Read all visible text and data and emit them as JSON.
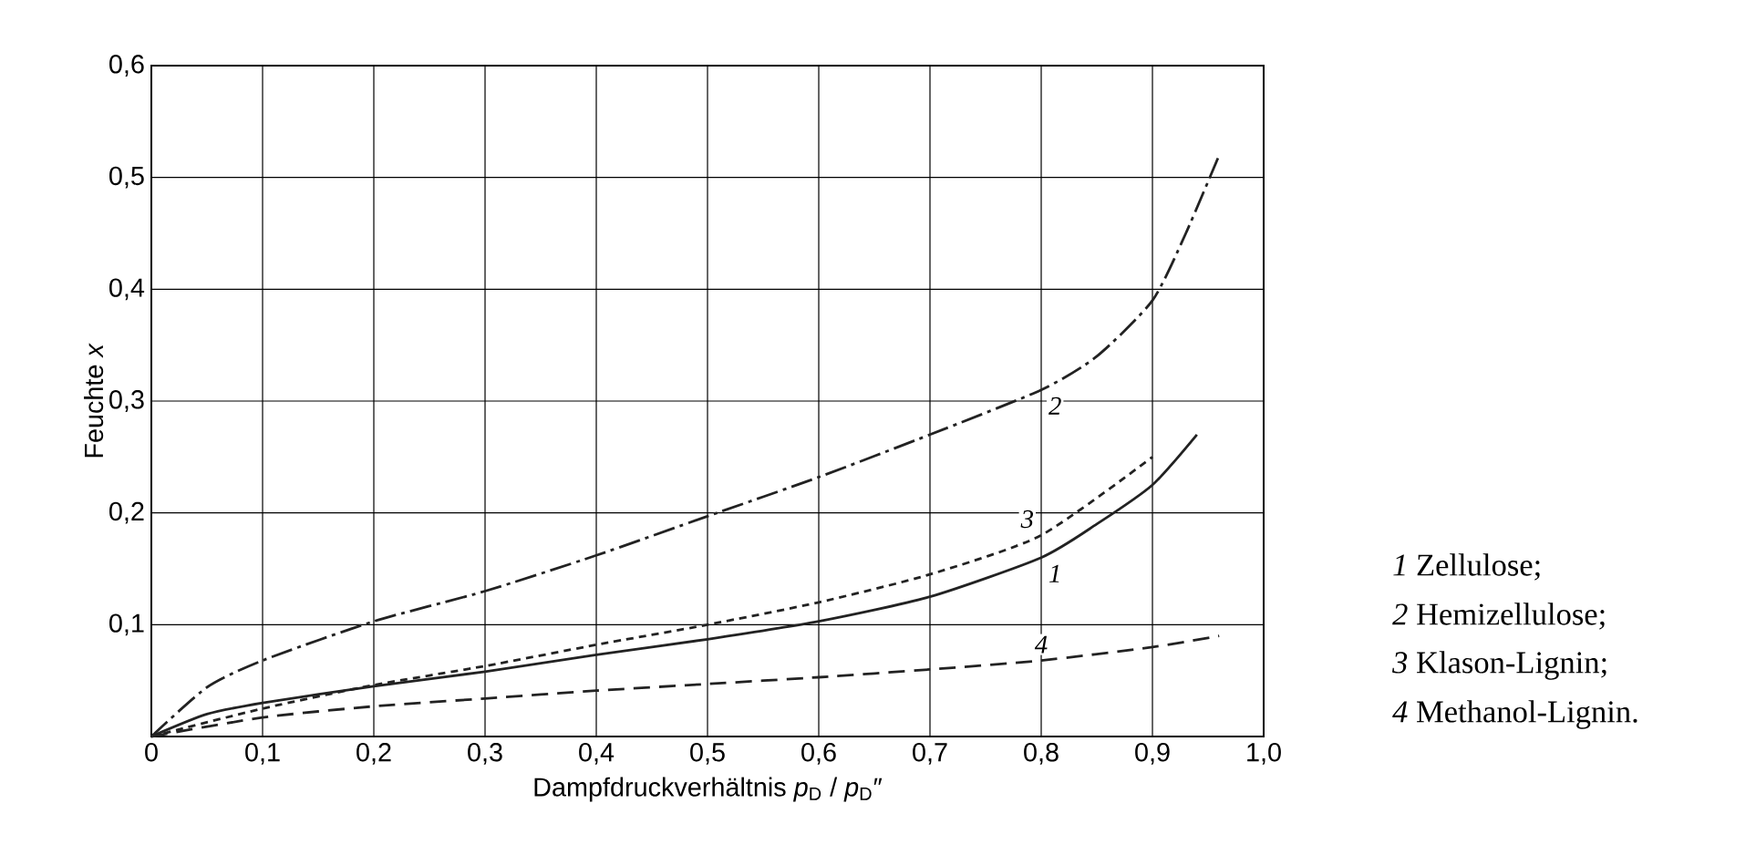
{
  "chart_data": {
    "type": "line",
    "xlabel": "Dampfdruckverhältnis *p*$_{D}$ / *p*$_{D}$″",
    "ylabel": "Feuchte *x*",
    "xlim": [
      0,
      1.0
    ],
    "ylim": [
      0,
      0.6
    ],
    "xticks": [
      {
        "value": 0,
        "label": "0"
      },
      {
        "value": 0.1,
        "label": "0,1"
      },
      {
        "value": 0.2,
        "label": "0,2"
      },
      {
        "value": 0.3,
        "label": "0,3"
      },
      {
        "value": 0.4,
        "label": "0,4"
      },
      {
        "value": 0.5,
        "label": "0,5"
      },
      {
        "value": 0.6,
        "label": "0,6"
      },
      {
        "value": 0.7,
        "label": "0,7"
      },
      {
        "value": 0.8,
        "label": "0,8"
      },
      {
        "value": 0.9,
        "label": "0,9"
      },
      {
        "value": 1.0,
        "label": "1,0"
      }
    ],
    "yticks": [
      {
        "value": 0,
        "label": null
      },
      {
        "value": 0.1,
        "label": "0,1"
      },
      {
        "value": 0.2,
        "label": "0,2"
      },
      {
        "value": 0.3,
        "label": "0,3"
      },
      {
        "value": 0.4,
        "label": "0,4"
      },
      {
        "value": 0.5,
        "label": "0,5"
      },
      {
        "value": 0.6,
        "label": "0,6"
      }
    ],
    "grid": true,
    "marker": "none",
    "series": [
      {
        "name": "1",
        "color": "#222222",
        "line_style": "solid",
        "x": [
          0,
          0.05,
          0.1,
          0.2,
          0.3,
          0.4,
          0.5,
          0.6,
          0.7,
          0.8,
          0.85,
          0.9,
          0.94
        ],
        "values": [
          0,
          0.02,
          0.03,
          0.045,
          0.058,
          0.073,
          0.087,
          0.103,
          0.125,
          0.16,
          0.19,
          0.225,
          0.27
        ]
      },
      {
        "name": "2",
        "color": "#222222",
        "line_style": "dashdot",
        "x": [
          0,
          0.05,
          0.1,
          0.2,
          0.3,
          0.4,
          0.5,
          0.6,
          0.7,
          0.8,
          0.85,
          0.9,
          0.93,
          0.96
        ],
        "values": [
          0,
          0.044,
          0.068,
          0.103,
          0.13,
          0.162,
          0.197,
          0.232,
          0.27,
          0.31,
          0.34,
          0.39,
          0.45,
          0.52
        ]
      },
      {
        "name": "3",
        "color": "#222222",
        "line_style": "dotted",
        "x": [
          0,
          0.1,
          0.2,
          0.3,
          0.4,
          0.5,
          0.6,
          0.7,
          0.8,
          0.9
        ],
        "values": [
          0,
          0.025,
          0.046,
          0.063,
          0.082,
          0.1,
          0.12,
          0.145,
          0.18,
          0.25
        ]
      },
      {
        "name": "4",
        "color": "#222222",
        "line_style": "dashed",
        "x": [
          0,
          0.1,
          0.2,
          0.3,
          0.4,
          0.5,
          0.6,
          0.7,
          0.8,
          0.9,
          0.96
        ],
        "values": [
          0,
          0.017,
          0.027,
          0.034,
          0.041,
          0.047,
          0.053,
          0.06,
          0.068,
          0.08,
          0.09
        ]
      }
    ],
    "annotations": [
      "*1* Zellulose;",
      "*2* Hemizellulose;",
      "*3* Klason-Lignin;",
      "*4* Methanol-Lignin."
    ]
  }
}
